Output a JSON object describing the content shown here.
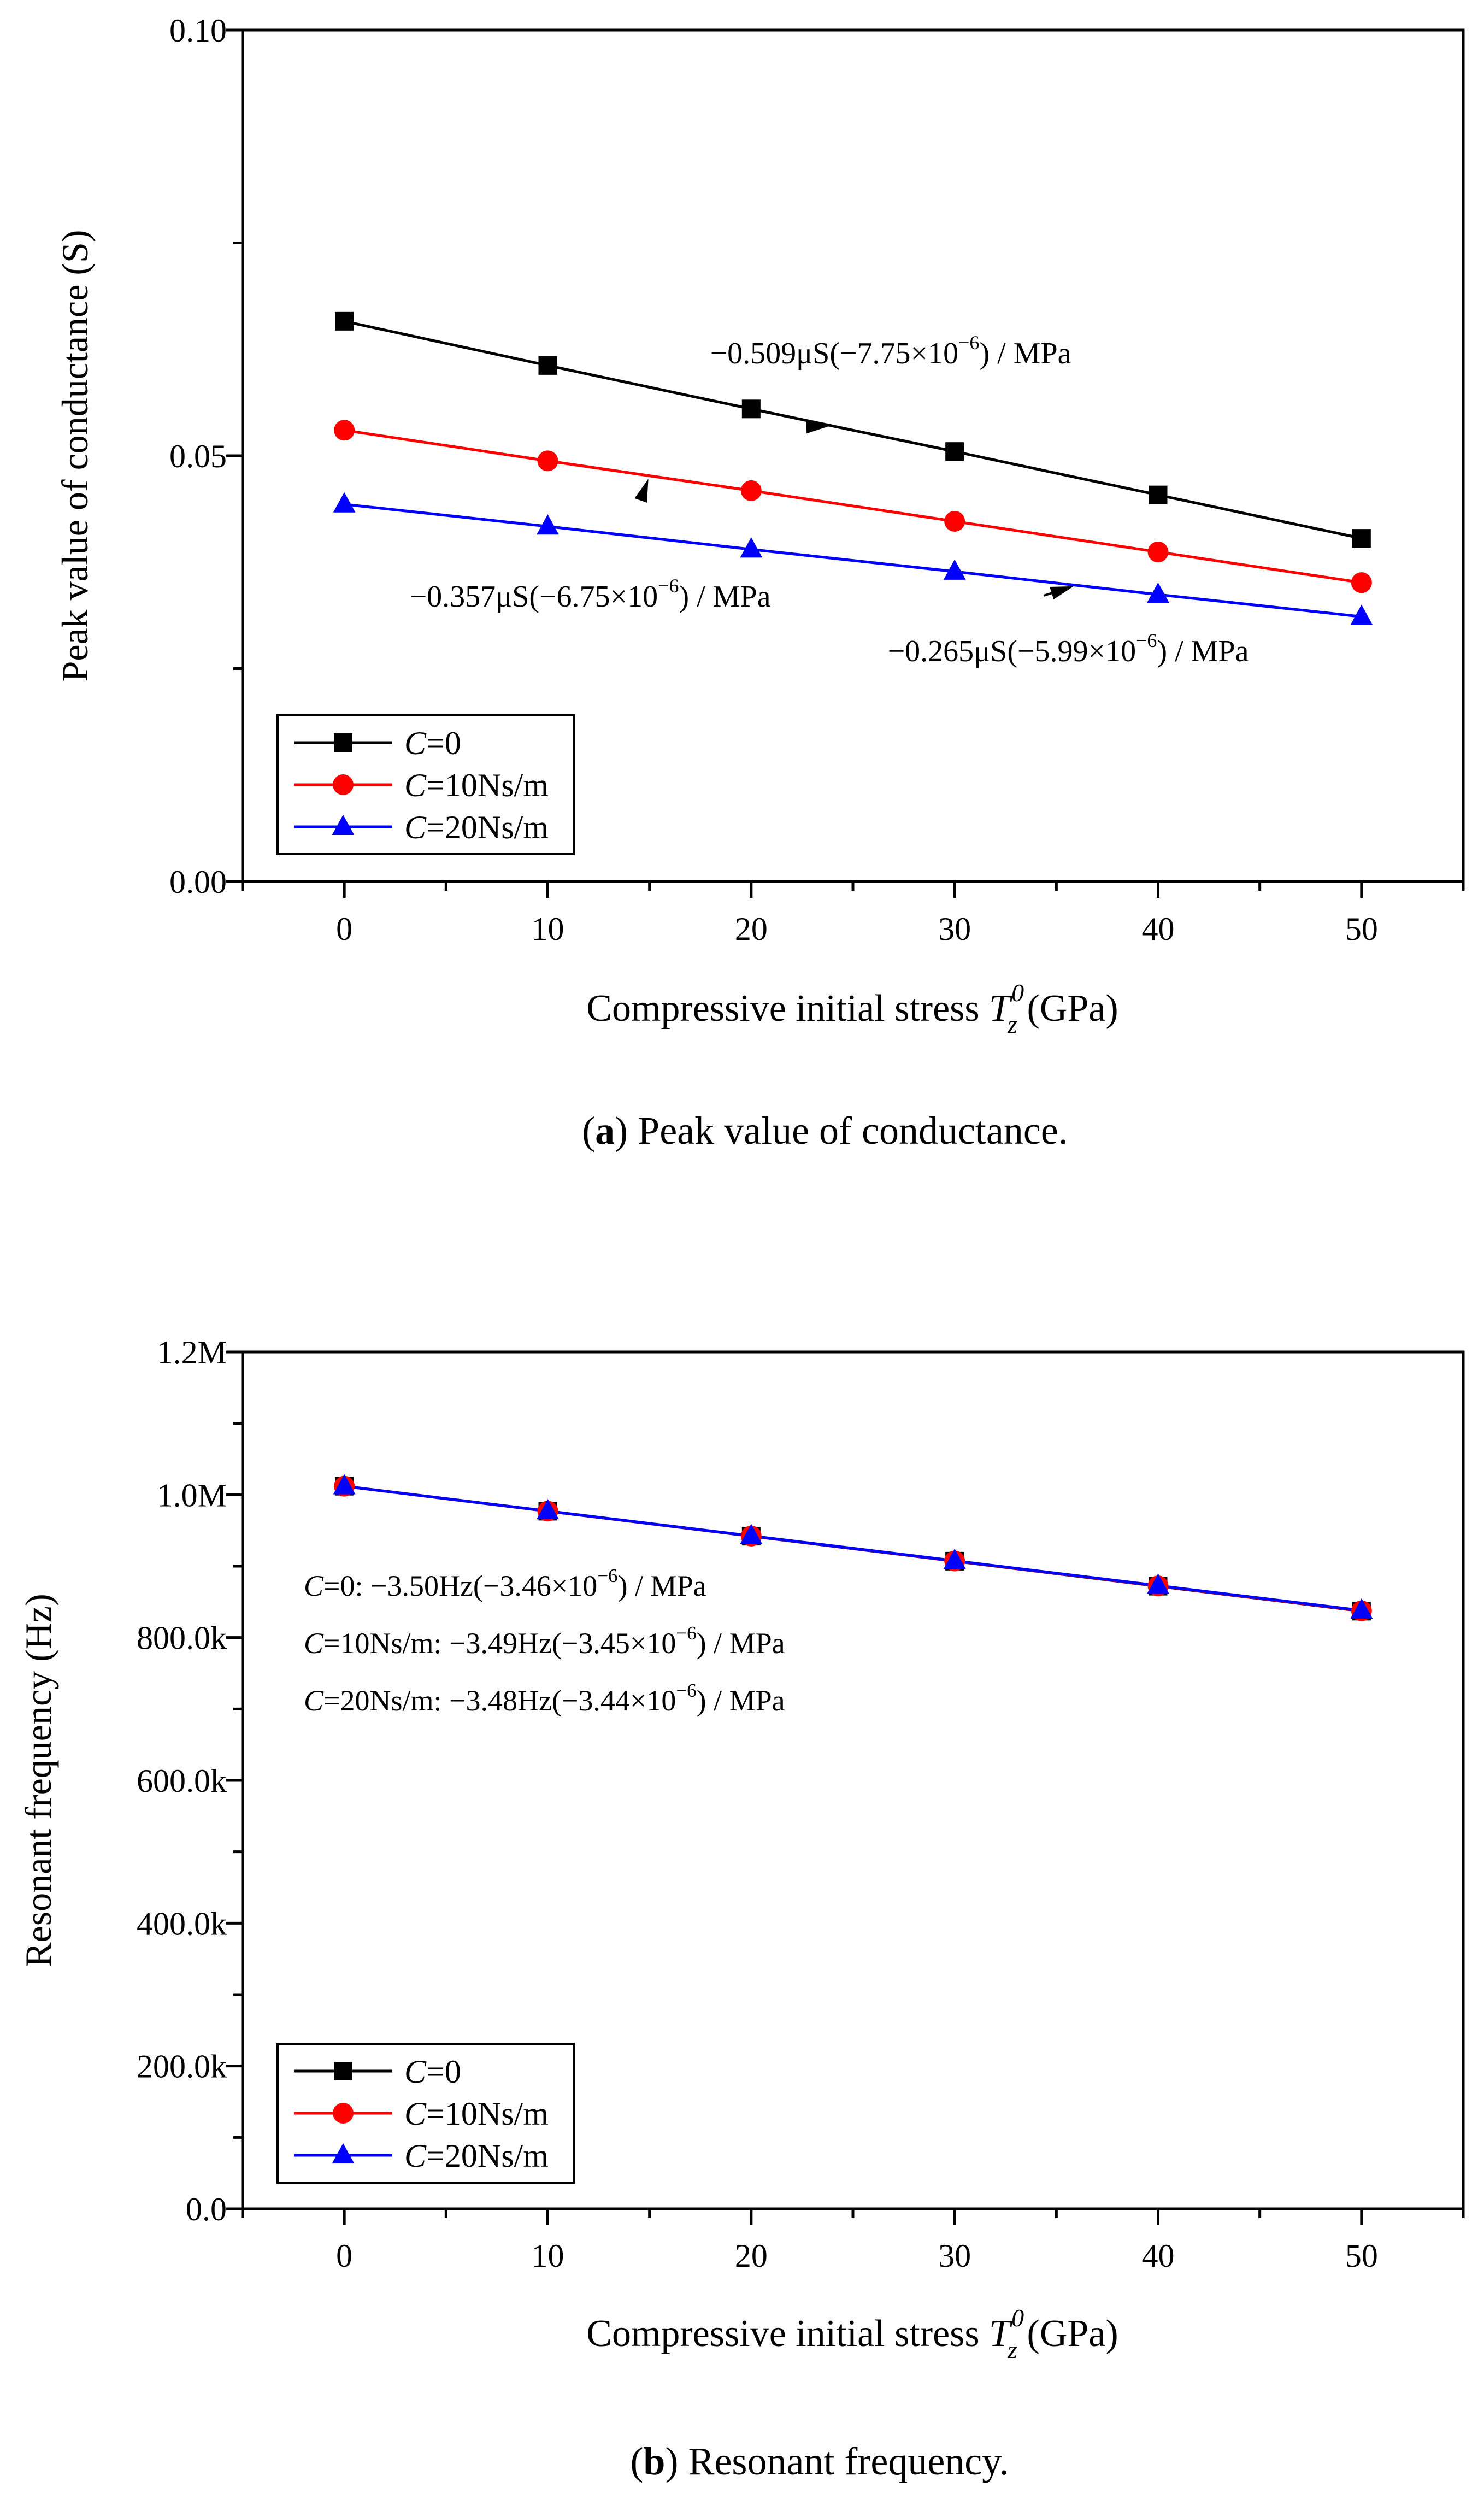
{
  "chart_data": [
    {
      "type": "line",
      "panel_id": "a",
      "x": [
        0,
        10,
        20,
        30,
        40,
        50
      ],
      "xlim": [
        -5,
        55
      ],
      "ylim": [
        0,
        0.1
      ],
      "xticks": [
        0,
        10,
        20,
        30,
        40,
        50
      ],
      "yticks": [
        0,
        0.05,
        0.1
      ],
      "xtick_labels": [
        "0",
        "10",
        "20",
        "30",
        "40",
        "50"
      ],
      "ytick_labels": [
        "0.00",
        "0.05",
        "0.10"
      ],
      "ylabel": "Peak value of conductance (S)",
      "xlabel": {
        "text": "Compressive initial stress ",
        "symbol": "T",
        "sub": "z",
        "sup": "0",
        "unit": " (GPa)"
      },
      "caption": {
        "letter": "a",
        "open": "(",
        "close": ")",
        "text": " Peak value of conductance."
      },
      "legend_position": "bottom-left",
      "series": [
        {
          "name": "C=0",
          "var": "C",
          "rest": "=0",
          "color": "#000000",
          "marker": "square",
          "values": [
            0.0658,
            0.0606,
            0.0555,
            0.0505,
            0.0454,
            0.0403
          ]
        },
        {
          "name": "C=10Ns/m",
          "var": "C",
          "rest": "=10Ns/m",
          "color": "#ff0000",
          "marker": "circle",
          "values": [
            0.053,
            0.0494,
            0.0459,
            0.0423,
            0.0387,
            0.0351
          ]
        },
        {
          "name": "C=20Ns/m",
          "var": "C",
          "rest": "=20Ns/m",
          "color": "#0000ff",
          "marker": "triangle",
          "values": [
            0.0443,
            0.0417,
            0.039,
            0.0364,
            0.0337,
            0.0311
          ]
        }
      ],
      "annotations": [
        {
          "pre": "−0.509μS(−7.75×10",
          "exp": "−6",
          "post": ") / MPa",
          "series": 0,
          "arrow_at_x": 24
        },
        {
          "pre": "−0.357μS(−6.75×10",
          "exp": "−6",
          "post": ") / MPa",
          "series": 1,
          "arrow_at_x": 15
        },
        {
          "pre": "−0.265μS(−5.99×10",
          "exp": "−6",
          "post": ") / MPa",
          "series": 2,
          "arrow_at_x": 36
        }
      ]
    },
    {
      "type": "line",
      "panel_id": "b",
      "x": [
        0,
        10,
        20,
        30,
        40,
        50
      ],
      "xlim": [
        -5,
        55
      ],
      "ylim": [
        0,
        1200000
      ],
      "xticks": [
        0,
        10,
        20,
        30,
        40,
        50
      ],
      "yticks": [
        0,
        200000,
        400000,
        600000,
        800000,
        1000000,
        1200000
      ],
      "xtick_labels": [
        "0",
        "10",
        "20",
        "30",
        "40",
        "50"
      ],
      "ytick_labels": [
        "0.0",
        "200.0k",
        "400.0k",
        "600.0k",
        "800.0k",
        "1.0M",
        "1.2M"
      ],
      "ylabel": "Resonant frequency (Hz)",
      "xlabel": {
        "text": "Compressive initial stress ",
        "symbol": "T",
        "sub": "z",
        "sup": "0",
        "unit": " (GPa)"
      },
      "caption": {
        "letter": "b",
        "open": "(",
        "close": ")",
        "text": " Resonant frequency."
      },
      "legend_position": "bottom-left",
      "series": [
        {
          "name": "C=0",
          "var": "C",
          "rest": "=0",
          "color": "#000000",
          "marker": "square",
          "values": [
            1012000,
            977000,
            942000,
            907000,
            872000,
            837000
          ]
        },
        {
          "name": "C=10Ns/m",
          "var": "C",
          "rest": "=10Ns/m",
          "color": "#ff0000",
          "marker": "circle",
          "values": [
            1012000,
            977100,
            942200,
            907300,
            872400,
            837500
          ]
        },
        {
          "name": "C=20Ns/m",
          "var": "C",
          "rest": "=20Ns/m",
          "color": "#0000ff",
          "marker": "triangle",
          "values": [
            1012000,
            977200,
            942400,
            907600,
            872800,
            838000
          ]
        }
      ],
      "annotations": [
        {
          "var": "C",
          "pre": "=0: −3.50Hz(−3.46×10",
          "exp": "−6",
          "post": ") / MPa"
        },
        {
          "var": "C",
          "pre": "=10Ns/m: −3.49Hz(−3.45×10",
          "exp": "−6",
          "post": ") / MPa"
        },
        {
          "var": "C",
          "pre": "=20Ns/m: −3.48Hz(−3.44×10",
          "exp": "−6",
          "post": ") / MPa"
        }
      ]
    }
  ]
}
